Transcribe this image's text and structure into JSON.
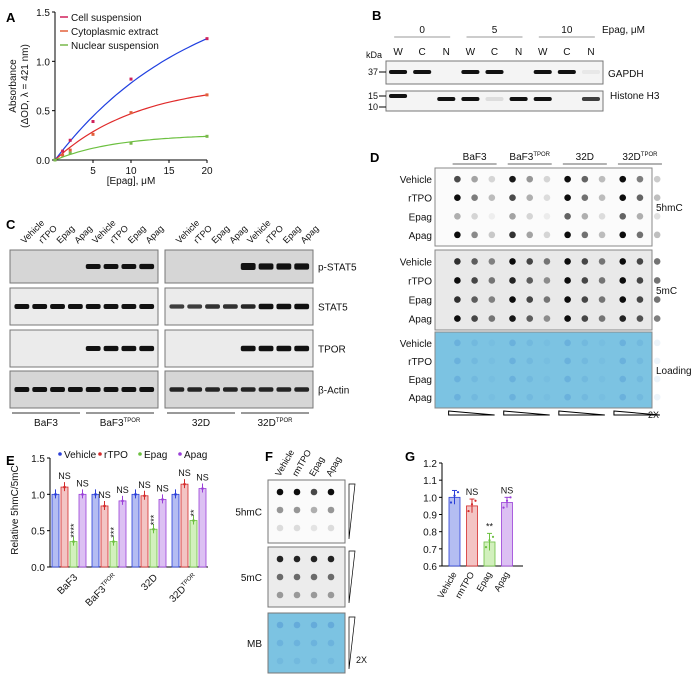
{
  "panels": {
    "A": {
      "label": "A"
    },
    "B": {
      "label": "B",
      "concentrations": [
        "0",
        "5",
        "10"
      ],
      "conc_unit": "Epag, μM",
      "lanes": [
        "W",
        "C",
        "N"
      ],
      "kda_label": "kDa",
      "markers": [
        "37",
        "15",
        "10"
      ],
      "blots": [
        "GAPDH",
        "Histone H3"
      ]
    },
    "C": {
      "label": "C",
      "treatments": [
        "Vehicle",
        "rTPO",
        "Epag",
        "Apag"
      ],
      "blots": [
        "p-STAT5",
        "STAT5",
        "TPOR",
        "β-Actin"
      ],
      "cell_lines": [
        {
          "base": "BaF3",
          "sup": ""
        },
        {
          "base": "BaF3",
          "sup": "TPOR"
        },
        {
          "base": "32D",
          "sup": ""
        },
        {
          "base": "32D",
          "sup": "TPOR"
        }
      ]
    },
    "D": {
      "label": "D",
      "cell_lines": [
        {
          "base": "BaF3",
          "sup": ""
        },
        {
          "base": "BaF3",
          "sup": "TPOR"
        },
        {
          "base": "32D",
          "sup": ""
        },
        {
          "base": "32D",
          "sup": "TPOR"
        }
      ],
      "rows": [
        "Vehicle",
        "rTPO",
        "Epag",
        "Apag"
      ],
      "blots": [
        "5hmC",
        "5mC",
        "Loading"
      ],
      "dilution_label": "2X",
      "loading_color": "#7cc3e2"
    },
    "F": {
      "label": "F",
      "treatments": [
        "Vehicle",
        "rmTPO",
        "Epag",
        "Apag"
      ],
      "blots": [
        "5hmC",
        "5mC",
        "MB"
      ],
      "dilution_label": "2X"
    }
  },
  "chart_data": [
    {
      "panel": "A",
      "type": "scatter",
      "xlabel": "[Epag], μM",
      "ylabel": "Absorbance",
      "ylabel2": "(ΔOD, λ = 421 nm)",
      "xlim": [
        0,
        20
      ],
      "ylim": [
        0,
        1.5
      ],
      "xticks": [
        "5",
        "10",
        "15",
        "20"
      ],
      "yticks": [
        "0.0",
        "0.5",
        "1.0",
        "1.5"
      ],
      "legend": "top-left",
      "series": [
        {
          "name": "Cell suspension",
          "marker_color": "#d0215a",
          "fit_color": "#1f3fe0",
          "x": [
            0,
            1,
            2,
            5,
            10,
            20
          ],
          "y": [
            0,
            0.09,
            0.2,
            0.39,
            0.82,
            1.23
          ]
        },
        {
          "name": "Cytoplasmic extract",
          "marker_color": "#e2603a",
          "fit_color": "#e02a2a",
          "x": [
            0,
            1,
            2,
            5,
            10,
            20
          ],
          "y": [
            0,
            0.05,
            0.1,
            0.26,
            0.48,
            0.66
          ]
        },
        {
          "name": "Nuclear suspension",
          "marker_color": "#79b84a",
          "fit_color": "#6cc040",
          "x": [
            0,
            2,
            10,
            20
          ],
          "y": [
            0,
            0.07,
            0.17,
            0.24
          ]
        }
      ]
    },
    {
      "panel": "E",
      "label": "E",
      "type": "bar",
      "ylabel": "Relative 5hmC/5mC",
      "ylim": [
        0,
        1.5
      ],
      "yticks": [
        "0.0",
        "0.5",
        "1.0",
        "1.5"
      ],
      "legend": "top",
      "categories": [
        {
          "base": "BaF3",
          "sup": ""
        },
        {
          "base": "BaF3",
          "sup": "TPOR"
        },
        {
          "base": "32D",
          "sup": ""
        },
        {
          "base": "32D",
          "sup": "TPOR"
        }
      ],
      "series": [
        {
          "name": "Vehicle",
          "color": "#2a3fd8",
          "fill": "#b4bdf2",
          "values": [
            1.0,
            1.0,
            1.0,
            1.0
          ],
          "annotations": [
            "",
            "",
            "",
            ""
          ]
        },
        {
          "name": "rTPO",
          "color": "#d42a2a",
          "fill": "#f3c4c4",
          "values": [
            1.1,
            0.84,
            0.98,
            1.14
          ],
          "annotations": [
            "NS",
            "NS",
            "NS",
            "NS"
          ]
        },
        {
          "name": "Epag",
          "color": "#6cc040",
          "fill": "#d2f0bd",
          "values": [
            0.35,
            0.35,
            0.52,
            0.64
          ],
          "annotations": [
            "****",
            "***",
            "***",
            "**"
          ]
        },
        {
          "name": "Apag",
          "color": "#9a3fd8",
          "fill": "#dcc0f3",
          "values": [
            1.0,
            0.91,
            0.93,
            1.08
          ],
          "annotations": [
            "NS",
            "NS",
            "NS",
            "NS"
          ]
        }
      ]
    },
    {
      "panel": "G",
      "label": "G",
      "type": "bar",
      "ylim": [
        0.6,
        1.2
      ],
      "yticks": [
        "0.6",
        "0.7",
        "0.8",
        "0.9",
        "1.0",
        "1.1",
        "1.2"
      ],
      "categories": [
        "Vehicle",
        "rmTPO",
        "Epag",
        "Apag"
      ],
      "values": [
        1.0,
        0.95,
        0.74,
        0.97
      ],
      "errors": [
        0.04,
        0.04,
        0.05,
        0.03
      ],
      "colors": [
        "#2a3fd8",
        "#d42a2a",
        "#6cc040",
        "#9a3fd8"
      ],
      "fills": [
        "#b4bdf2",
        "#f3c4c4",
        "#d2f0bd",
        "#dcc0f3"
      ],
      "annotations": [
        "",
        "NS",
        "**",
        "NS"
      ]
    }
  ]
}
